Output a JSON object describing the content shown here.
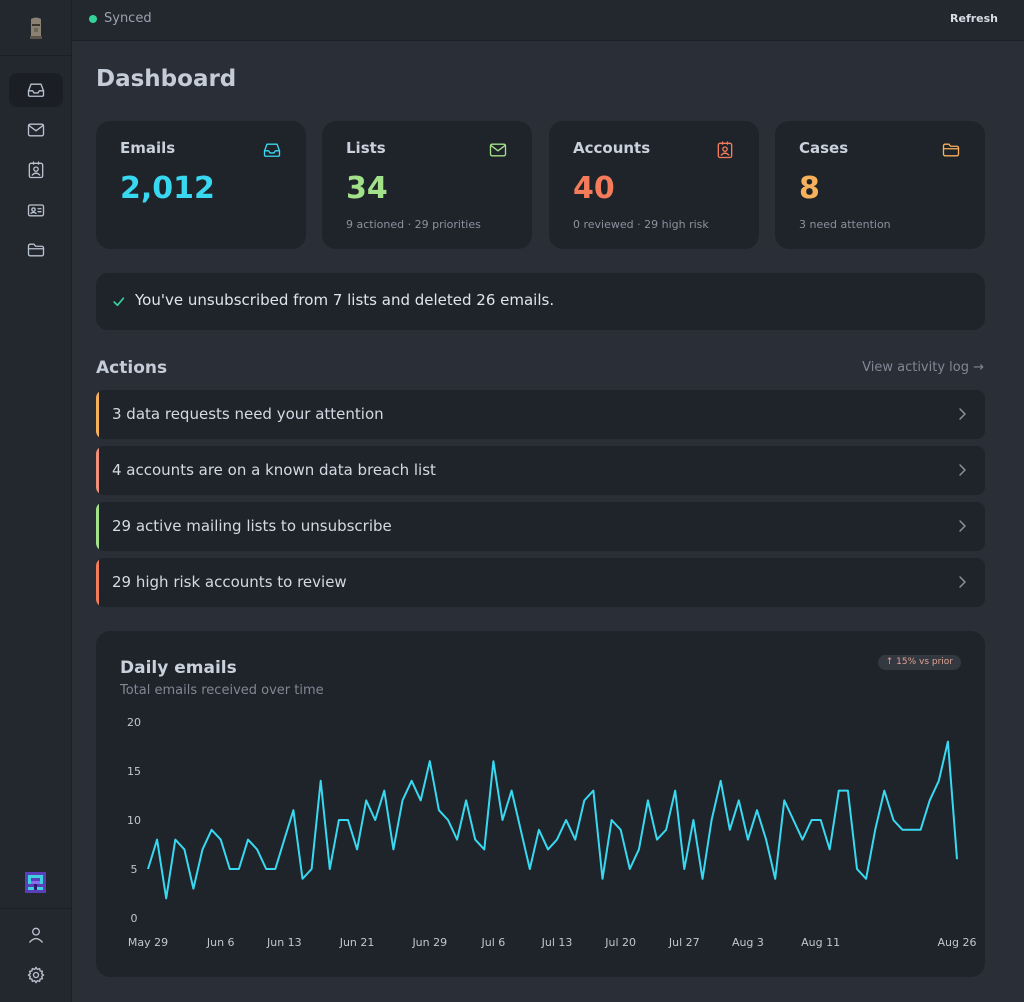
{
  "topbar": {
    "status": "Synced",
    "refresh_label": "Refresh"
  },
  "sidebar": {
    "items": [
      {
        "icon": "inbox-icon",
        "active": true
      },
      {
        "icon": "mail-icon",
        "active": false
      },
      {
        "icon": "contact-badge-icon",
        "active": false
      },
      {
        "icon": "id-card-icon",
        "active": false
      },
      {
        "icon": "folder-icon",
        "active": false
      }
    ],
    "bottom": [
      {
        "icon": "user-icon"
      },
      {
        "icon": "gear-icon"
      }
    ]
  },
  "page": {
    "title": "Dashboard"
  },
  "cards": [
    {
      "label": "Emails",
      "value": "2,012",
      "sub": "",
      "color": "#38d9f0",
      "icon": "inbox-icon"
    },
    {
      "label": "Lists",
      "value": "34",
      "sub": "9 actioned · 29 priorities",
      "color": "#a3e08a",
      "icon": "mail-icon"
    },
    {
      "label": "Accounts",
      "value": "40",
      "sub": "0 reviewed · 29 high risk",
      "color": "#f47c5a",
      "icon": "contact-badge-icon"
    },
    {
      "label": "Cases",
      "value": "8",
      "sub": "3 need attention",
      "color": "#f7b05b",
      "icon": "folder-icon"
    }
  ],
  "banner": {
    "text": "You've unsubscribed from 7 lists and deleted 26 emails.",
    "icon": "check-icon"
  },
  "actions": {
    "title": "Actions",
    "activity_link": "View activity log →",
    "items": [
      {
        "text": "3 data requests need your attention",
        "color": "#f7b05b"
      },
      {
        "text": "4 accounts are on a known data breach list",
        "color": "#f0907a"
      },
      {
        "text": "29 active mailing lists to unsubscribe",
        "color": "#a3e08a"
      },
      {
        "text": "29 high risk accounts to review",
        "color": "#f47c5a"
      }
    ]
  },
  "chart": {
    "title": "Daily emails",
    "subtitle": "Total emails received over time",
    "badge": "↑ 15% vs prior"
  },
  "chart_data": {
    "type": "line",
    "title": "Daily emails",
    "subtitle": "Total emails received over time",
    "xlabel": "",
    "ylabel": "",
    "ylim": [
      0,
      20
    ],
    "yticks": [
      0,
      5,
      10,
      15,
      20
    ],
    "grid": false,
    "color": "#38d9f0",
    "x_tick_labels": [
      "May 29",
      "Jun 6",
      "Jun 13",
      "Jun 21",
      "Jun 29",
      "Jul 6",
      "Jul 13",
      "Jul 20",
      "Jul 27",
      "Aug 3",
      "Aug 11",
      "Aug 26"
    ],
    "x_tick_index": [
      0,
      8,
      15,
      23,
      31,
      38,
      45,
      52,
      59,
      66,
      74,
      89
    ],
    "values": [
      5,
      8,
      2,
      8,
      7,
      3,
      7,
      9,
      8,
      5,
      5,
      8,
      7,
      5,
      5,
      8,
      11,
      4,
      5,
      14,
      5,
      10,
      10,
      7,
      12,
      10,
      13,
      7,
      12,
      14,
      12,
      16,
      11,
      10,
      8,
      12,
      8,
      7,
      16,
      10,
      13,
      9,
      5,
      9,
      7,
      8,
      10,
      8,
      12,
      13,
      4,
      10,
      9,
      5,
      7,
      12,
      8,
      9,
      13,
      5,
      10,
      4,
      10,
      14,
      9,
      12,
      8,
      11,
      8,
      4,
      12,
      10,
      8,
      10,
      10,
      7,
      13,
      13,
      5,
      4,
      9,
      13,
      10,
      9,
      9,
      9,
      12,
      14,
      18,
      6
    ]
  }
}
